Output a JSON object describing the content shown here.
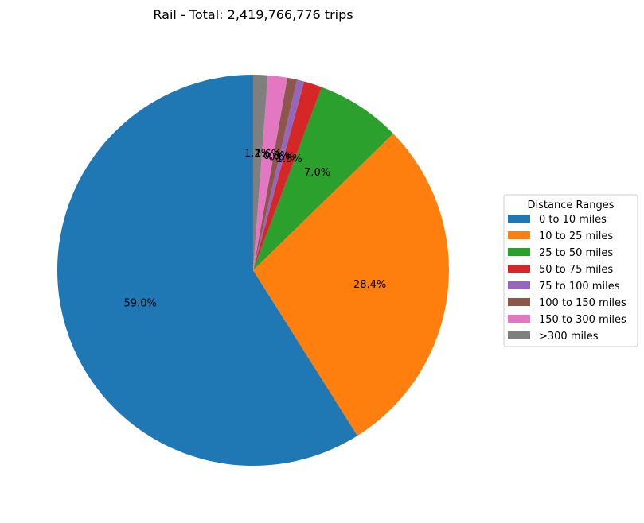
{
  "chart_data": {
    "type": "pie",
    "title": "Rail - Total: 2,419,766,776 trips",
    "legend_title": "Distance Ranges",
    "legend_position": "right",
    "start_angle_deg": 90,
    "direction": "counterclockwise",
    "slices": [
      {
        "label": "0 to 10 miles",
        "value": 59.0,
        "pct_label": "59.0%",
        "color": "#1f77b4"
      },
      {
        "label": "10 to 25 miles",
        "value": 28.4,
        "pct_label": "28.4%",
        "color": "#ff7f0e"
      },
      {
        "label": "25 to 50 miles",
        "value": 7.0,
        "pct_label": "7.0%",
        "color": "#2ca02c"
      },
      {
        "label": "50 to 75 miles",
        "value": 1.5,
        "pct_label": "1.5%",
        "color": "#d62728"
      },
      {
        "label": "75 to 100 miles",
        "value": 0.6,
        "pct_label": "0.6%",
        "color": "#9467bd"
      },
      {
        "label": "100 to 150 miles",
        "value": 0.8,
        "pct_label": "0.8%",
        "color": "#8c564b"
      },
      {
        "label": "150 to 300 miles",
        "value": 1.6,
        "pct_label": "1.6%",
        "color": "#e377c2"
      },
      {
        "label": ">300 miles",
        "value": 1.2,
        "pct_label": "1.2%",
        "color": "#7f7f7f"
      }
    ]
  }
}
